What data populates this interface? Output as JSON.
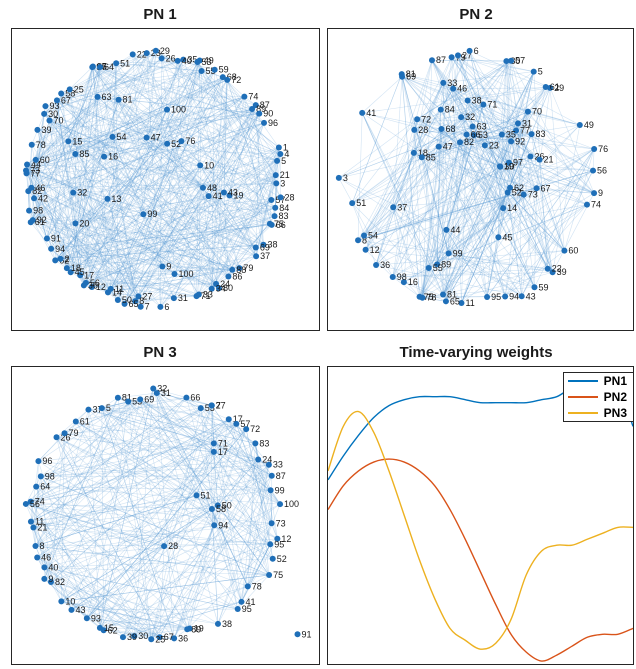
{
  "chart_data": [
    {
      "type": "network",
      "title": "PN 1",
      "nodes": [
        "3",
        "57",
        "28",
        "84",
        "83",
        "66",
        "75",
        "38",
        "41",
        "69",
        "37",
        "47",
        "79",
        "88",
        "86",
        "80",
        "24",
        "34",
        "33",
        "71",
        "48",
        "31",
        "85",
        "19",
        "6",
        "7",
        "27",
        "8",
        "65",
        "50",
        "14",
        "11",
        "12",
        "36",
        "56",
        "17",
        "45",
        "18",
        "62",
        "2",
        "94",
        "91",
        "52",
        "76",
        "61",
        "92",
        "98",
        "82",
        "42",
        "46",
        "77",
        "73",
        "44",
        "60",
        "78",
        "54",
        "39",
        "70",
        "30",
        "93",
        "13",
        "67",
        "58",
        "25",
        "43",
        "9",
        "95",
        "97",
        "64",
        "51",
        "10",
        "15",
        "20",
        "22",
        "23",
        "26",
        "29",
        "32",
        "35",
        "40",
        "49",
        "53",
        "55",
        "59",
        "63",
        "68",
        "72",
        "74",
        "81",
        "87",
        "89",
        "90",
        "96",
        "99",
        "100",
        "1",
        "4",
        "5",
        "16",
        "21",
        "100"
      ]
    },
    {
      "type": "network",
      "title": "PN 2",
      "nodes": [
        "9",
        "89",
        "74",
        "26",
        "62",
        "73",
        "70",
        "60",
        "30",
        "39",
        "22",
        "59",
        "21",
        "43",
        "82",
        "94",
        "95",
        "52",
        "92",
        "11",
        "65",
        "81",
        "78",
        "75",
        "16",
        "45",
        "77",
        "98",
        "36",
        "44",
        "12",
        "8",
        "54",
        "14",
        "18",
        "51",
        "55",
        "3",
        "38",
        "31",
        "23",
        "97",
        "72",
        "83",
        "41",
        "67",
        "84",
        "37",
        "68",
        "81",
        "69",
        "53",
        "47",
        "87",
        "79",
        "28",
        "27",
        "6",
        "99",
        "85",
        "80",
        "57",
        "5",
        "32",
        "29",
        "61",
        "35",
        "19",
        "71",
        "33",
        "49",
        "63",
        "66",
        "76",
        "56",
        "46"
      ]
    },
    {
      "type": "network",
      "title": "PN 3",
      "nodes": [
        "73",
        "12",
        "95",
        "52",
        "94",
        "75",
        "78",
        "41",
        "95",
        "17",
        "38",
        "50",
        "19",
        "89",
        "36",
        "67",
        "25",
        "30",
        "39",
        "62",
        "15",
        "93",
        "51",
        "43",
        "10",
        "82",
        "9",
        "40",
        "46",
        "8",
        "21",
        "11",
        "74",
        "56",
        "64",
        "98",
        "96",
        "58",
        "26",
        "79",
        "61",
        "28",
        "37",
        "5",
        "81",
        "53",
        "69",
        "32",
        "31",
        "71",
        "66",
        "55",
        "7",
        "27",
        "17",
        "57",
        "72",
        "83",
        "24",
        "33",
        "87",
        "99",
        "100",
        "91"
      ]
    },
    {
      "type": "line",
      "title": "Time-varying weights",
      "x": [
        0,
        0.05,
        0.1,
        0.15,
        0.2,
        0.25,
        0.3,
        0.35,
        0.4,
        0.45,
        0.5,
        0.55,
        0.6,
        0.65,
        0.7,
        0.75,
        0.8,
        0.85,
        0.9,
        0.95,
        1.0
      ],
      "series": [
        {
          "name": "PN1",
          "color": "#0072BD",
          "values": [
            0.62,
            0.7,
            0.77,
            0.83,
            0.87,
            0.89,
            0.9,
            0.9,
            0.9,
            0.89,
            0.88,
            0.88,
            0.88,
            0.88,
            0.89,
            0.9,
            0.93,
            0.94,
            0.94,
            0.94,
            0.8
          ]
        },
        {
          "name": "PN2",
          "color": "#D95319",
          "values": [
            0.52,
            0.6,
            0.65,
            0.68,
            0.69,
            0.68,
            0.65,
            0.6,
            0.52,
            0.42,
            0.31,
            0.2,
            0.1,
            0.04,
            0.01,
            0.03,
            0.06,
            0.09,
            0.1,
            0.1,
            0.12
          ]
        },
        {
          "name": "PN3",
          "color": "#EDB120",
          "values": [
            0.65,
            0.8,
            0.85,
            0.78,
            0.65,
            0.5,
            0.35,
            0.22,
            0.12,
            0.08,
            0.05,
            0.07,
            0.15,
            0.3,
            0.38,
            0.4,
            0.4,
            0.42,
            0.44,
            0.46,
            0.46
          ]
        }
      ],
      "legend": "top-right",
      "ylim": [
        0,
        1
      ]
    }
  ]
}
